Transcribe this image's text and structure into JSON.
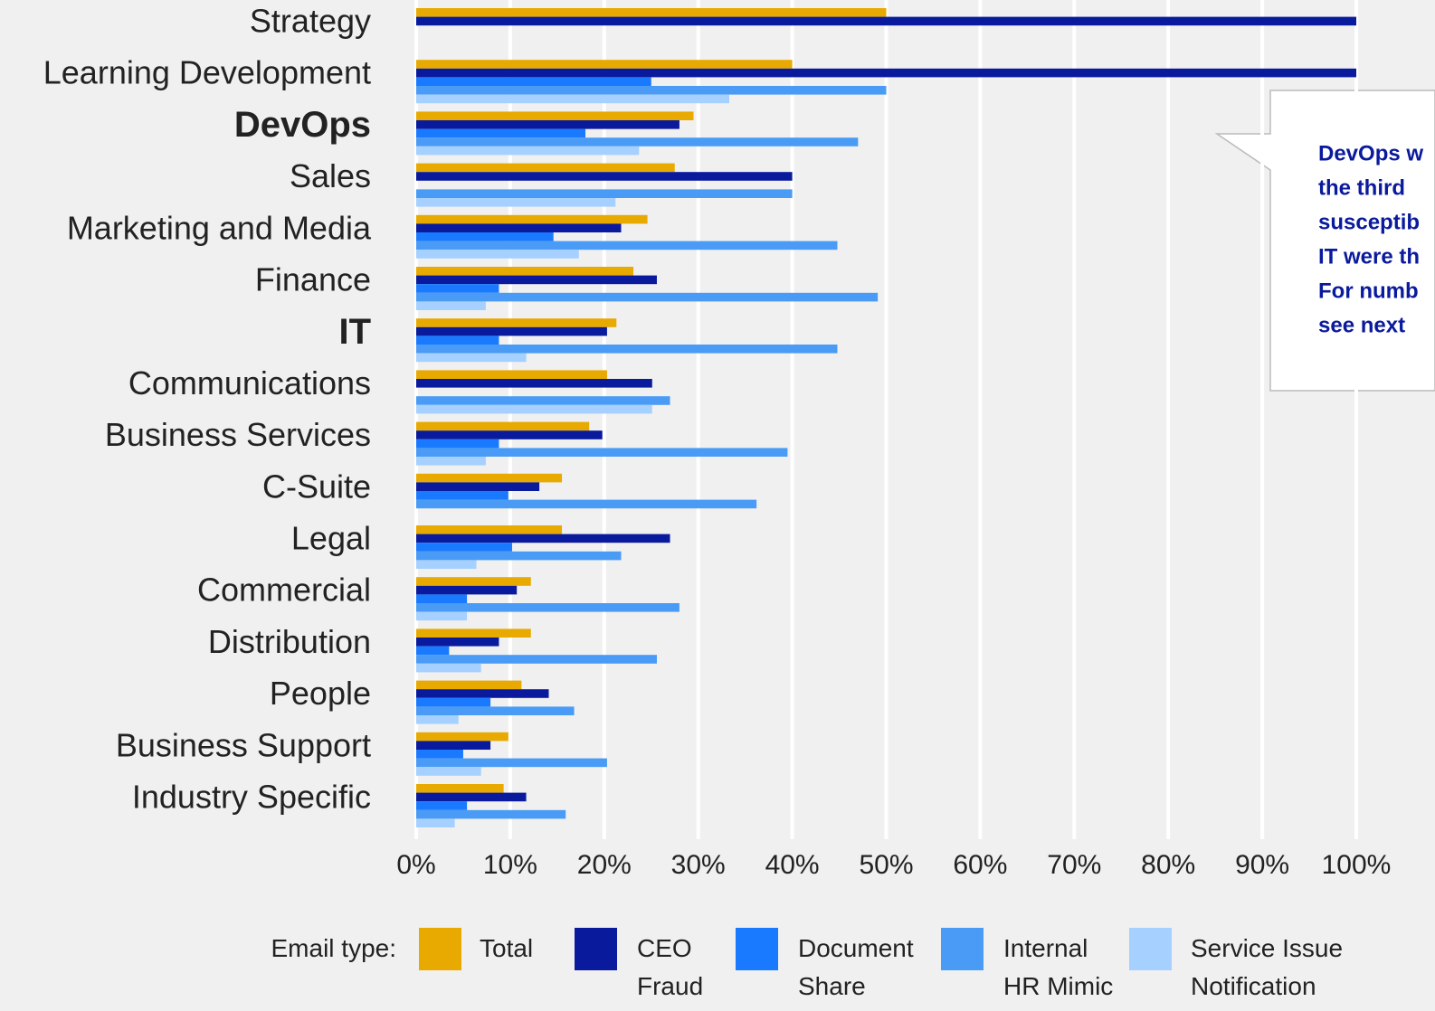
{
  "chart_data": {
    "type": "hbar",
    "categories": [
      "Strategy",
      "Learning Development",
      "DevOps",
      "Sales",
      "Marketing and Media",
      "Finance",
      "IT",
      "Communications",
      "Business Services",
      "C-Suite",
      "Legal",
      "Commercial",
      "Distribution",
      "People",
      "Business Support",
      "Industry Specific"
    ],
    "emphasized_categories": [
      2,
      6
    ],
    "series": [
      {
        "name": "Total",
        "color": "#e8a900",
        "values": [
          50,
          40,
          29.5,
          27.5,
          24.6,
          23.1,
          21.3,
          20.3,
          18.4,
          15.5,
          15.5,
          12.2,
          12.2,
          11.2,
          9.8,
          9.3
        ]
      },
      {
        "name": "CEO Fraud",
        "color": "#0a1a9c",
        "values": [
          100,
          100,
          28,
          40,
          21.8,
          25.6,
          20.3,
          25.1,
          19.8,
          13.1,
          27,
          10.7,
          8.8,
          14.1,
          7.9,
          11.7
        ]
      },
      {
        "name": "Document Share",
        "color": "#1a7aff",
        "values": [
          null,
          25,
          18,
          null,
          14.6,
          8.8,
          8.8,
          null,
          8.8,
          9.8,
          10.2,
          5.4,
          3.5,
          7.9,
          5,
          5.4
        ]
      },
      {
        "name": "Internal HR Mimic",
        "color": "#4a9bf5",
        "values": [
          null,
          50,
          47,
          40,
          44.8,
          49.1,
          44.8,
          27,
          39.5,
          36.2,
          21.8,
          28,
          25.6,
          16.8,
          20.3,
          15.9
        ]
      },
      {
        "name": "Service Issue Notification",
        "color": "#a6d0ff",
        "values": [
          null,
          33.3,
          23.7,
          21.2,
          17.3,
          7.4,
          11.7,
          25.1,
          7.4,
          null,
          6.4,
          5.4,
          6.9,
          4.5,
          6.9,
          4.1
        ]
      }
    ],
    "xlim": [
      0,
      100
    ],
    "xticks": [
      {
        "value": 0,
        "label": "0%"
      },
      {
        "value": 10,
        "label": "10%"
      },
      {
        "value": 20,
        "label": "20%"
      },
      {
        "value": 30,
        "label": "30%"
      },
      {
        "value": 40,
        "label": "40%"
      },
      {
        "value": 50,
        "label": "50%"
      },
      {
        "value": 60,
        "label": "60%"
      },
      {
        "value": 70,
        "label": "70%"
      },
      {
        "value": 80,
        "label": "80%"
      },
      {
        "value": 90,
        "label": "90%"
      },
      {
        "value": 100,
        "label": "100%"
      }
    ],
    "grid": true,
    "legend_title": "Email type:",
    "annotation": [
      "DevOps w",
      "the third",
      "susceptib",
      "IT were th",
      "For numb",
      "see next"
    ]
  }
}
